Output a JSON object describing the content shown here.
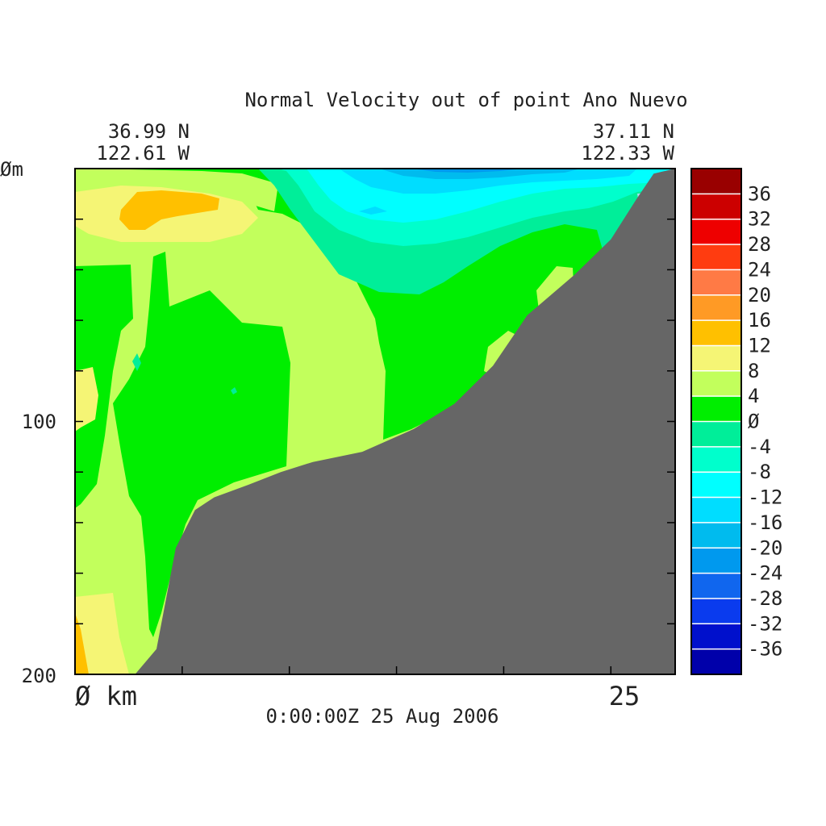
{
  "chart_data": {
    "type": "heatmap",
    "title": "Normal Velocity out of point Ano Nuevo",
    "start_lat": "36.99 N",
    "start_lon": "122.61 W",
    "end_lat": "37.11 N",
    "end_lon": "122.33 W",
    "timestamp": "0:00:00Z  25 Aug 2006",
    "x_unit_label": "Ø km",
    "x_tick_label": "25",
    "y_top_label": "Øm",
    "y_tick_labels": [
      "100",
      "200"
    ],
    "xlim": [
      0,
      28
    ],
    "ylim": [
      0,
      200
    ],
    "y_ticks": [
      0,
      20,
      40,
      60,
      80,
      100,
      120,
      140,
      160,
      180,
      200
    ],
    "x_ticks": [
      5,
      10,
      15,
      20,
      25
    ],
    "colorbar": {
      "levels": [
        "36",
        "32",
        "28",
        "24",
        "20",
        "16",
        "12",
        "8",
        "4",
        "Ø",
        "-4",
        "-8",
        "-12",
        "-16",
        "-20",
        "-24",
        "-28",
        "-32",
        "-36"
      ],
      "bands": [
        {
          "lo": 36,
          "color": "#990000"
        },
        {
          "lo": 32,
          "color": "#cc0000"
        },
        {
          "lo": 28,
          "color": "#ee0000"
        },
        {
          "lo": 24,
          "color": "#ff3c10"
        },
        {
          "lo": 20,
          "color": "#ff7a45"
        },
        {
          "lo": 16,
          "color": "#ff9a25"
        },
        {
          "lo": 12,
          "color": "#ffc000"
        },
        {
          "lo": 8,
          "color": "#f5f575"
        },
        {
          "lo": 4,
          "color": "#c2ff5c"
        },
        {
          "lo": 0,
          "color": "#00ee00"
        },
        {
          "lo": -4,
          "color": "#00ee99"
        },
        {
          "lo": -8,
          "color": "#00ffcc"
        },
        {
          "lo": -12,
          "color": "#00ffff"
        },
        {
          "lo": -16,
          "color": "#00ddff"
        },
        {
          "lo": -20,
          "color": "#00bbee"
        },
        {
          "lo": -24,
          "color": "#0099ee"
        },
        {
          "lo": -28,
          "color": "#1066ee"
        },
        {
          "lo": -32,
          "color": "#0a3bee"
        },
        {
          "lo": -36,
          "color": "#0010cc"
        },
        {
          "lo": -40,
          "color": "#0000aa"
        }
      ]
    },
    "bathymetry": {
      "x_km": [
        2.8,
        3.8,
        4.7,
        5.6,
        6.5,
        8.1,
        9.6,
        11.1,
        13.4,
        15.8,
        17.7,
        19.5,
        21.1,
        23.3,
        25.0,
        26.2,
        27.0,
        28.0
      ],
      "depth_m": [
        200,
        190,
        150,
        135,
        130,
        125,
        120,
        116,
        112,
        103,
        93,
        78,
        58,
        42,
        28,
        12,
        2,
        0
      ]
    },
    "terrain_color": "#666666"
  }
}
